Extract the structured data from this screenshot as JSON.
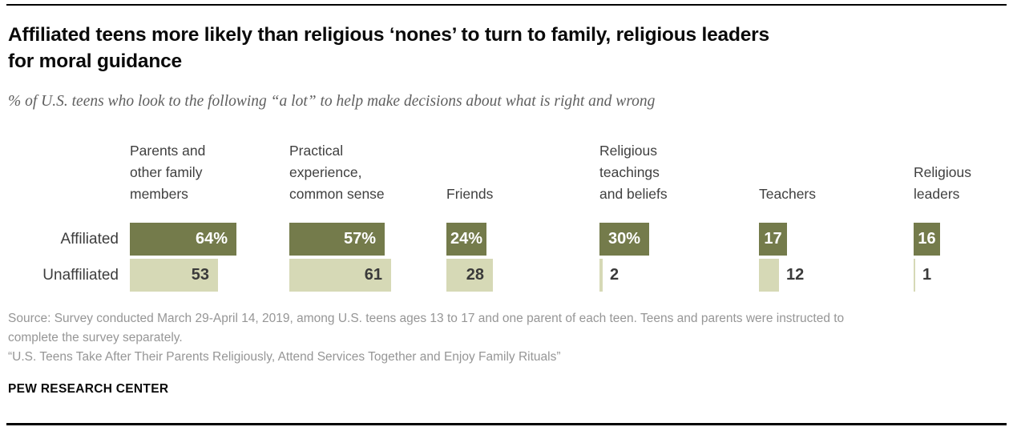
{
  "header": {
    "title": "Affiliated teens more likely than religious ‘nones’ to turn to family, religious leaders\nfor moral guidance",
    "subtitle": "% of U.S. teens who look to the following “a lot” to help make decisions about what is right and wrong"
  },
  "chart_data": {
    "type": "bar",
    "orientation": "horizontal-grouped",
    "grid": false,
    "value_unit": "%",
    "xlim": [
      0,
      100
    ],
    "categories": [
      "Parents and\nother family\nmembers",
      "Practical\nexperience,\ncommon sense",
      "Friends",
      "Religious\nteachings\nand beliefs",
      "Teachers",
      "Religious\nleaders"
    ],
    "series": [
      {
        "name": "Affiliated",
        "color": "#747B4B",
        "label_color": "#FFFFFF",
        "values": [
          64,
          57,
          24,
          30,
          17,
          16
        ],
        "labels": [
          "64%",
          "57%",
          "24%",
          "30%",
          "17",
          "16"
        ]
      },
      {
        "name": "Unaffiliated",
        "color": "#D6D9B6",
        "label_color": "#3A3A3A",
        "values": [
          53,
          61,
          28,
          2,
          12,
          1
        ],
        "labels": [
          "53",
          "61",
          "28",
          "2",
          "12",
          "1"
        ]
      }
    ],
    "outside_label_color": "#3A3A3A"
  },
  "footer": {
    "source": "Source: Survey conducted March 29-April 14, 2019, among U.S. teens ages 13 to 17 and one parent of each teen. Teens and parents were instructed to complete the survey separately.",
    "report_title": "“U.S. Teens Take After Their Parents Religiously, Attend Services Together and Enjoy Family Rituals”",
    "brand": "PEW RESEARCH CENTER"
  }
}
